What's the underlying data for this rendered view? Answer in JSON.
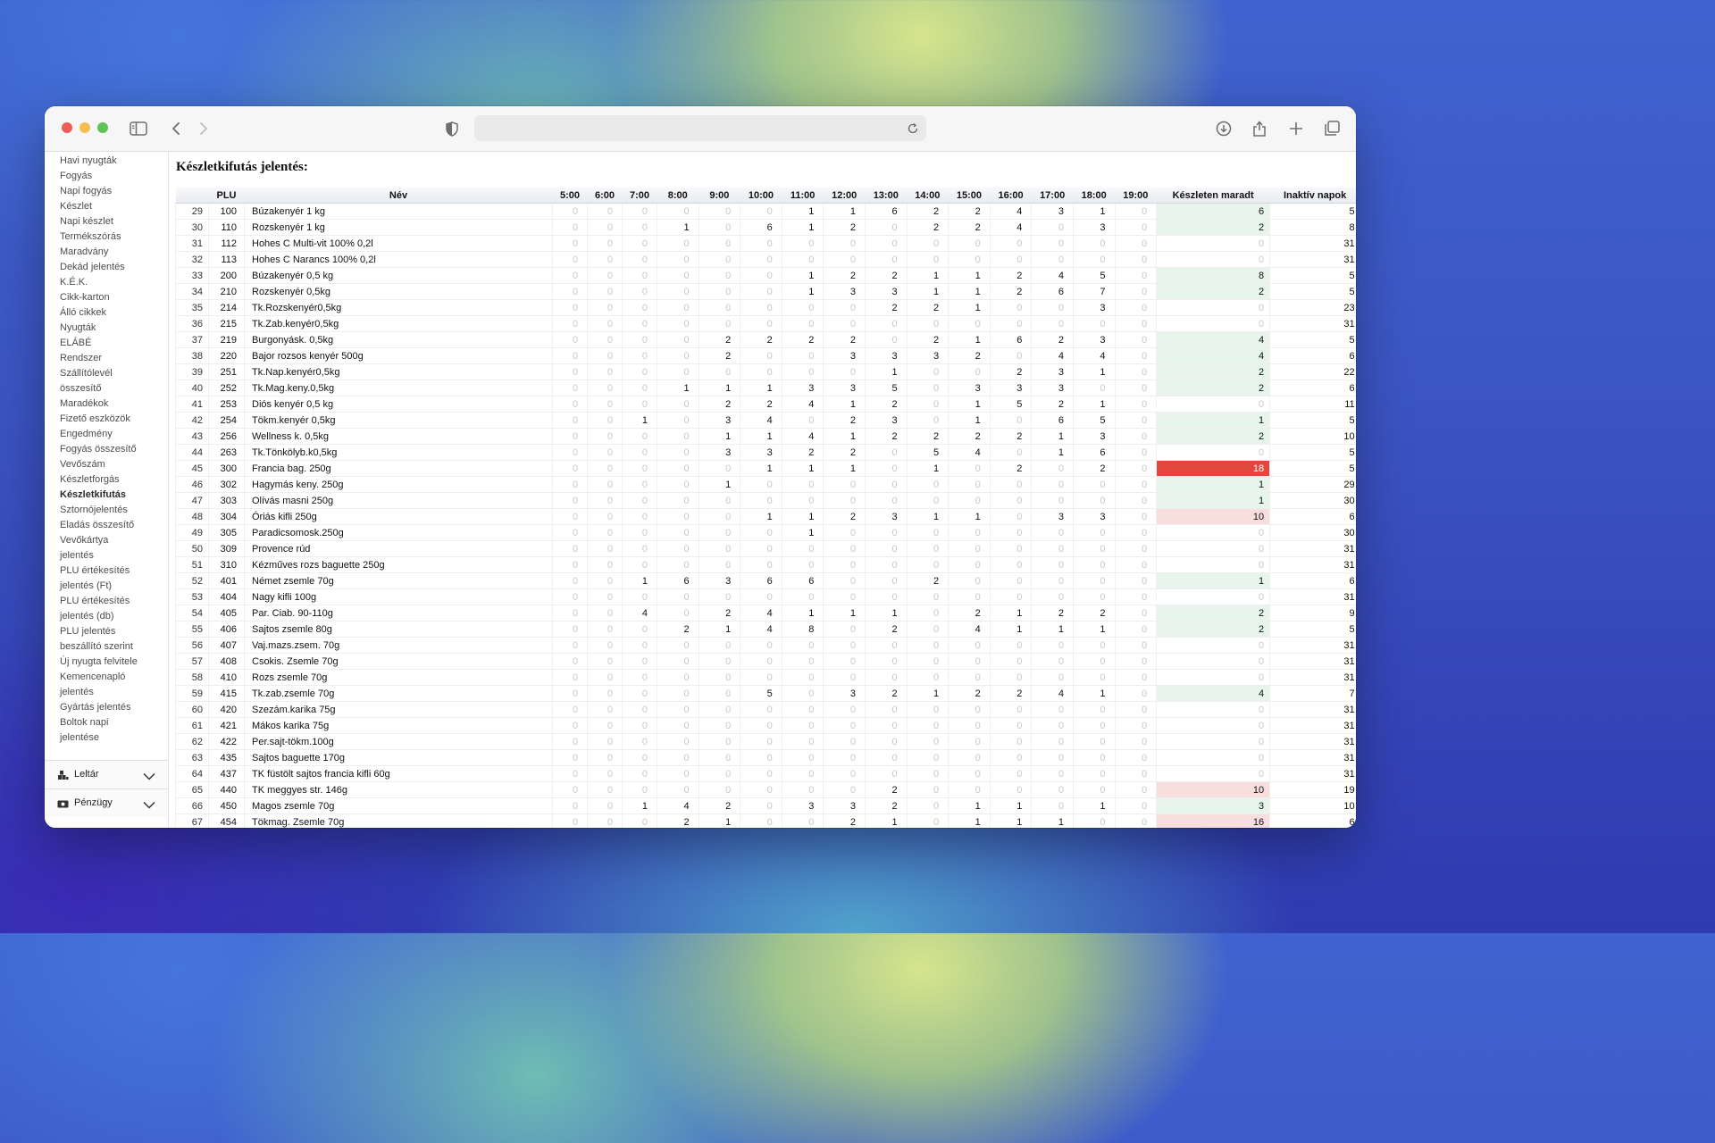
{
  "browser": {
    "url": "",
    "icons": [
      "sidebar-toggle-icon",
      "back-icon",
      "forward-icon",
      "shield-icon",
      "reload-icon",
      "download-icon",
      "share-icon",
      "new-tab-icon",
      "tabs-overview-icon"
    ]
  },
  "sidebar": {
    "items": [
      "Havi nyugták",
      "Fogyás",
      "Napi fogyás",
      "Készlet",
      "Napi készlet",
      "Termékszórás",
      "Maradvány",
      "Dekád jelentés",
      "K.É.K.",
      "Cikk-karton",
      "Álló cikkek",
      "Nyugták",
      "ELÁBÉ",
      "Rendszer",
      "Szállítólevél",
      "összesítő",
      "Maradékok",
      "Fizető eszközök",
      "Engedmény",
      "Fogyás összesítő",
      "Vevőszám",
      "Készletforgás",
      "Készletkifutás",
      "Sztornójelentés",
      "Eladás összesítő",
      "Vevőkártya",
      "jelentés",
      "PLU értékesítés",
      "jelentés (Ft)",
      "PLU értékesítés",
      "jelentés (db)",
      "PLU jelentés",
      "beszállító szerint",
      "Új nyugta felvitele",
      "Kemencenapló",
      "jelentés",
      "Gyártás jelentés",
      "Boltok napi",
      "jelentése"
    ],
    "active_index": 22,
    "sections": [
      {
        "label": "Leltár",
        "icon": "inventory-icon"
      },
      {
        "label": "Pénzügy",
        "icon": "money-icon"
      }
    ]
  },
  "report": {
    "title": "Készletkifutás jelentés:",
    "columns": {
      "plu": "PLU",
      "name": "Név",
      "hours": [
        "5:00",
        "6:00",
        "7:00",
        "8:00",
        "9:00",
        "10:00",
        "11:00",
        "12:00",
        "13:00",
        "14:00",
        "15:00",
        "16:00",
        "17:00",
        "18:00",
        "19:00"
      ],
      "stock": "Készleten maradt",
      "inactive": "Inaktív napok"
    },
    "rows": [
      {
        "n": 29,
        "plu": 100,
        "name": "Búzakenyér 1 kg",
        "h": [
          0,
          0,
          0,
          0,
          0,
          0,
          1,
          1,
          6,
          2,
          2,
          4,
          3,
          1,
          0
        ],
        "stock": 6,
        "inactive": 5,
        "hl": "g"
      },
      {
        "n": 30,
        "plu": 110,
        "name": "Rozskenyér 1 kg",
        "h": [
          0,
          0,
          0,
          1,
          0,
          6,
          1,
          2,
          0,
          2,
          2,
          4,
          0,
          3,
          0
        ],
        "stock": 2,
        "inactive": 8,
        "hl": "g"
      },
      {
        "n": 31,
        "plu": 112,
        "name": "Hohes C Multi-vit 100% 0,2l",
        "h": [
          0,
          0,
          0,
          0,
          0,
          0,
          0,
          0,
          0,
          0,
          0,
          0,
          0,
          0,
          0
        ],
        "stock": 0,
        "inactive": 31,
        "hl": ""
      },
      {
        "n": 32,
        "plu": 113,
        "name": "Hohes C Narancs 100% 0,2l",
        "h": [
          0,
          0,
          0,
          0,
          0,
          0,
          0,
          0,
          0,
          0,
          0,
          0,
          0,
          0,
          0
        ],
        "stock": 0,
        "inactive": 31,
        "hl": ""
      },
      {
        "n": 33,
        "plu": 200,
        "name": "Búzakenyér 0,5 kg",
        "h": [
          0,
          0,
          0,
          0,
          0,
          0,
          1,
          2,
          2,
          1,
          1,
          2,
          4,
          5,
          0
        ],
        "stock": 8,
        "inactive": 5,
        "hl": "g"
      },
      {
        "n": 34,
        "plu": 210,
        "name": "Rozskenyér 0,5kg",
        "h": [
          0,
          0,
          0,
          0,
          0,
          0,
          1,
          3,
          3,
          1,
          1,
          2,
          6,
          7,
          0
        ],
        "stock": 2,
        "inactive": 5,
        "hl": "g"
      },
      {
        "n": 35,
        "plu": 214,
        "name": "Tk.Rozskenyér0,5kg",
        "h": [
          0,
          0,
          0,
          0,
          0,
          0,
          0,
          0,
          2,
          2,
          1,
          0,
          0,
          3,
          0
        ],
        "stock": 0,
        "inactive": 23,
        "hl": ""
      },
      {
        "n": 36,
        "plu": 215,
        "name": "Tk.Zab.kenyér0,5kg",
        "h": [
          0,
          0,
          0,
          0,
          0,
          0,
          0,
          0,
          0,
          0,
          0,
          0,
          0,
          0,
          0
        ],
        "stock": 0,
        "inactive": 31,
        "hl": ""
      },
      {
        "n": 37,
        "plu": 219,
        "name": "Burgonyásk. 0,5kg",
        "h": [
          0,
          0,
          0,
          0,
          2,
          2,
          2,
          2,
          0,
          2,
          1,
          6,
          2,
          3,
          0
        ],
        "stock": 4,
        "inactive": 5,
        "hl": "g"
      },
      {
        "n": 38,
        "plu": 220,
        "name": "Bajor rozsos kenyér 500g",
        "h": [
          0,
          0,
          0,
          0,
          2,
          0,
          0,
          3,
          3,
          3,
          2,
          0,
          4,
          4,
          0
        ],
        "stock": 4,
        "inactive": 6,
        "hl": "g"
      },
      {
        "n": 39,
        "plu": 251,
        "name": "Tk.Nap.kenyér0,5kg",
        "h": [
          0,
          0,
          0,
          0,
          0,
          0,
          0,
          0,
          1,
          0,
          0,
          2,
          3,
          1,
          0
        ],
        "stock": 2,
        "inactive": 22,
        "hl": "g"
      },
      {
        "n": 40,
        "plu": 252,
        "name": "Tk.Mag.keny.0,5kg",
        "h": [
          0,
          0,
          0,
          1,
          1,
          1,
          3,
          3,
          5,
          0,
          3,
          3,
          3,
          0,
          0
        ],
        "stock": 2,
        "inactive": 6,
        "hl": "g"
      },
      {
        "n": 41,
        "plu": 253,
        "name": "Diós kenyér 0,5 kg",
        "h": [
          0,
          0,
          0,
          0,
          2,
          2,
          4,
          1,
          2,
          0,
          1,
          5,
          2,
          1,
          0
        ],
        "stock": 0,
        "inactive": 11,
        "hl": ""
      },
      {
        "n": 42,
        "plu": 254,
        "name": "Tökm.kenyér 0,5kg",
        "h": [
          0,
          0,
          1,
          0,
          3,
          4,
          0,
          2,
          3,
          0,
          1,
          0,
          6,
          5,
          0
        ],
        "stock": 1,
        "inactive": 5,
        "hl": "g"
      },
      {
        "n": 43,
        "plu": 256,
        "name": "Wellness k. 0,5kg",
        "h": [
          0,
          0,
          0,
          0,
          1,
          1,
          4,
          1,
          2,
          2,
          2,
          2,
          1,
          3,
          0
        ],
        "stock": 2,
        "inactive": 10,
        "hl": "g"
      },
      {
        "n": 44,
        "plu": 263,
        "name": "Tk.Tönkölyb.k0,5kg",
        "h": [
          0,
          0,
          0,
          0,
          3,
          3,
          2,
          2,
          0,
          5,
          4,
          0,
          1,
          6,
          0
        ],
        "stock": 0,
        "inactive": 5,
        "hl": ""
      },
      {
        "n": 45,
        "plu": 300,
        "name": "Francia bag. 250g",
        "h": [
          0,
          0,
          0,
          0,
          0,
          1,
          1,
          1,
          0,
          1,
          0,
          2,
          0,
          2,
          0
        ],
        "stock": 18,
        "inactive": 5,
        "hl": "r"
      },
      {
        "n": 46,
        "plu": 302,
        "name": "Hagymás keny. 250g",
        "h": [
          0,
          0,
          0,
          0,
          1,
          0,
          0,
          0,
          0,
          0,
          0,
          0,
          0,
          0,
          0
        ],
        "stock": 1,
        "inactive": 29,
        "hl": "g"
      },
      {
        "n": 47,
        "plu": 303,
        "name": "Olívás masni 250g",
        "h": [
          0,
          0,
          0,
          0,
          0,
          0,
          0,
          0,
          0,
          0,
          0,
          0,
          0,
          0,
          0
        ],
        "stock": 1,
        "inactive": 30,
        "hl": "g"
      },
      {
        "n": 48,
        "plu": 304,
        "name": "Óriás kifli 250g",
        "h": [
          0,
          0,
          0,
          0,
          0,
          1,
          1,
          2,
          3,
          1,
          1,
          0,
          3,
          3,
          0
        ],
        "stock": 10,
        "inactive": 6,
        "hl": "p"
      },
      {
        "n": 49,
        "plu": 305,
        "name": "Paradicsomosk.250g",
        "h": [
          0,
          0,
          0,
          0,
          0,
          0,
          1,
          0,
          0,
          0,
          0,
          0,
          0,
          0,
          0
        ],
        "stock": 0,
        "inactive": 30,
        "hl": ""
      },
      {
        "n": 50,
        "plu": 309,
        "name": "Provence rúd",
        "h": [
          0,
          0,
          0,
          0,
          0,
          0,
          0,
          0,
          0,
          0,
          0,
          0,
          0,
          0,
          0
        ],
        "stock": 0,
        "inactive": 31,
        "hl": ""
      },
      {
        "n": 51,
        "plu": 310,
        "name": "Kézműves rozs baguette 250g",
        "h": [
          0,
          0,
          0,
          0,
          0,
          0,
          0,
          0,
          0,
          0,
          0,
          0,
          0,
          0,
          0
        ],
        "stock": 0,
        "inactive": 31,
        "hl": ""
      },
      {
        "n": 52,
        "plu": 401,
        "name": "Német zsemle 70g",
        "h": [
          0,
          0,
          1,
          6,
          3,
          6,
          6,
          0,
          0,
          2,
          0,
          0,
          0,
          0,
          0
        ],
        "stock": 1,
        "inactive": 6,
        "hl": "g"
      },
      {
        "n": 53,
        "plu": 404,
        "name": "Nagy kifli 100g",
        "h": [
          0,
          0,
          0,
          0,
          0,
          0,
          0,
          0,
          0,
          0,
          0,
          0,
          0,
          0,
          0
        ],
        "stock": 0,
        "inactive": 31,
        "hl": ""
      },
      {
        "n": 54,
        "plu": 405,
        "name": "Par. Ciab. 90-110g",
        "h": [
          0,
          0,
          4,
          0,
          2,
          4,
          1,
          1,
          1,
          0,
          2,
          1,
          2,
          2,
          0
        ],
        "stock": 2,
        "inactive": 9,
        "hl": "g"
      },
      {
        "n": 55,
        "plu": 406,
        "name": "Sajtos zsemle 80g",
        "h": [
          0,
          0,
          0,
          2,
          1,
          4,
          8,
          0,
          2,
          0,
          4,
          1,
          1,
          1,
          0
        ],
        "stock": 2,
        "inactive": 5,
        "hl": "g"
      },
      {
        "n": 56,
        "plu": 407,
        "name": "Vaj.mazs.zsem. 70g",
        "h": [
          0,
          0,
          0,
          0,
          0,
          0,
          0,
          0,
          0,
          0,
          0,
          0,
          0,
          0,
          0
        ],
        "stock": 0,
        "inactive": 31,
        "hl": ""
      },
      {
        "n": 57,
        "plu": 408,
        "name": "Csokis. Zsemle 70g",
        "h": [
          0,
          0,
          0,
          0,
          0,
          0,
          0,
          0,
          0,
          0,
          0,
          0,
          0,
          0,
          0
        ],
        "stock": 0,
        "inactive": 31,
        "hl": ""
      },
      {
        "n": 58,
        "plu": 410,
        "name": "Rozs zsemle 70g",
        "h": [
          0,
          0,
          0,
          0,
          0,
          0,
          0,
          0,
          0,
          0,
          0,
          0,
          0,
          0,
          0
        ],
        "stock": 0,
        "inactive": 31,
        "hl": ""
      },
      {
        "n": 59,
        "plu": 415,
        "name": "Tk.zab.zsemle 70g",
        "h": [
          0,
          0,
          0,
          0,
          0,
          5,
          0,
          3,
          2,
          1,
          2,
          2,
          4,
          1,
          0
        ],
        "stock": 4,
        "inactive": 7,
        "hl": "g"
      },
      {
        "n": 60,
        "plu": 420,
        "name": "Szezám.karika 75g",
        "h": [
          0,
          0,
          0,
          0,
          0,
          0,
          0,
          0,
          0,
          0,
          0,
          0,
          0,
          0,
          0
        ],
        "stock": 0,
        "inactive": 31,
        "hl": ""
      },
      {
        "n": 61,
        "plu": 421,
        "name": "Mákos karika 75g",
        "h": [
          0,
          0,
          0,
          0,
          0,
          0,
          0,
          0,
          0,
          0,
          0,
          0,
          0,
          0,
          0
        ],
        "stock": 0,
        "inactive": 31,
        "hl": ""
      },
      {
        "n": 62,
        "plu": 422,
        "name": "Per.sajt-tökm.100g",
        "h": [
          0,
          0,
          0,
          0,
          0,
          0,
          0,
          0,
          0,
          0,
          0,
          0,
          0,
          0,
          0
        ],
        "stock": 0,
        "inactive": 31,
        "hl": ""
      },
      {
        "n": 63,
        "plu": 435,
        "name": "Sajtos baguette 170g",
        "h": [
          0,
          0,
          0,
          0,
          0,
          0,
          0,
          0,
          0,
          0,
          0,
          0,
          0,
          0,
          0
        ],
        "stock": 0,
        "inactive": 31,
        "hl": ""
      },
      {
        "n": 64,
        "plu": 437,
        "name": "TK füstölt sajtos francia kifli 60g",
        "h": [
          0,
          0,
          0,
          0,
          0,
          0,
          0,
          0,
          0,
          0,
          0,
          0,
          0,
          0,
          0
        ],
        "stock": 0,
        "inactive": 31,
        "hl": ""
      },
      {
        "n": 65,
        "plu": 440,
        "name": "TK meggyes str. 146g",
        "h": [
          0,
          0,
          0,
          0,
          0,
          0,
          0,
          0,
          2,
          0,
          0,
          0,
          0,
          0,
          0
        ],
        "stock": 10,
        "inactive": 19,
        "hl": "p"
      },
      {
        "n": 66,
        "plu": 450,
        "name": "Magos zsemle 70g",
        "h": [
          0,
          0,
          1,
          4,
          2,
          0,
          3,
          3,
          2,
          0,
          1,
          1,
          0,
          1,
          0
        ],
        "stock": 3,
        "inactive": 10,
        "hl": "g"
      },
      {
        "n": 67,
        "plu": 454,
        "name": "Tökmag. Zsemle 70g",
        "h": [
          0,
          0,
          0,
          2,
          1,
          0,
          0,
          2,
          1,
          0,
          1,
          1,
          1,
          0,
          0
        ],
        "stock": 16,
        "inactive": 6,
        "hl": "p"
      }
    ]
  }
}
